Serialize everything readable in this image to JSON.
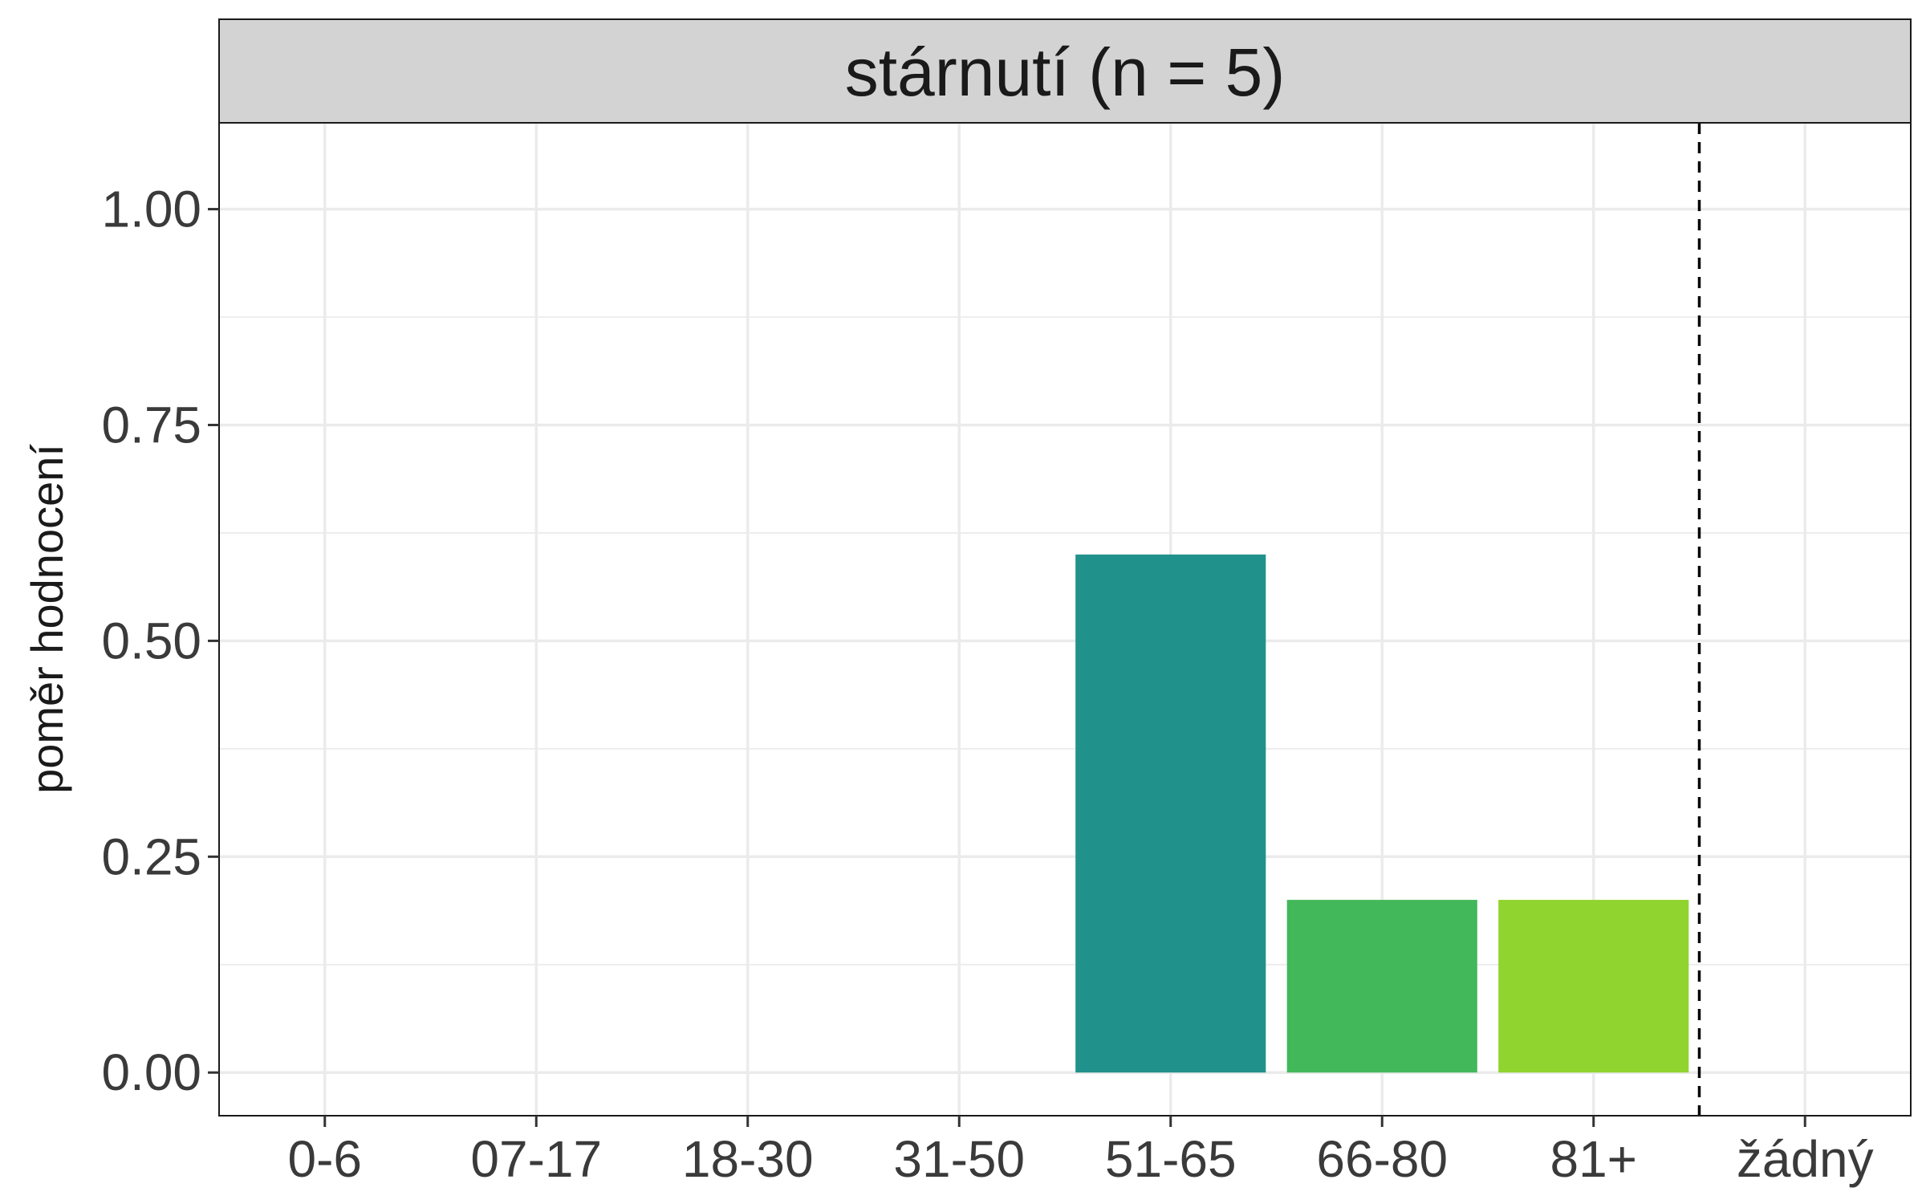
{
  "chart_data": {
    "type": "bar",
    "facet_title": "stárnutí (n = 5)",
    "ylabel": "poměr hodnocení",
    "xlabel": "",
    "categories": [
      "0-6",
      "07-17",
      "18-30",
      "31-50",
      "51-65",
      "66-80",
      "81+",
      "žádný"
    ],
    "values": [
      0,
      0,
      0,
      0,
      0.6,
      0.2,
      0.2,
      0
    ],
    "bar_colors": [
      "#21918c",
      "#21918c",
      "#21918c",
      "#21918c",
      "#21918c",
      "#43b85a",
      "#90d42f",
      "#90d42f"
    ],
    "ylim": [
      -0.05,
      1.1
    ],
    "yticks": [
      0.0,
      0.25,
      0.5,
      0.75,
      1.0
    ],
    "ytick_labels": [
      "0.00",
      "0.25",
      "0.50",
      "0.75",
      "1.00"
    ],
    "reference_line": {
      "style": "dashed",
      "between_categories": [
        "81+",
        "žádný"
      ]
    },
    "grid": true,
    "theme": "bw"
  }
}
